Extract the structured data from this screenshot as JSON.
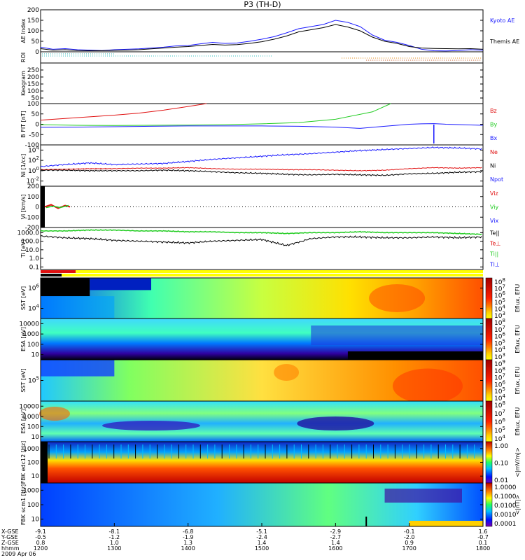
{
  "title": "P3 (TH-D)",
  "colors": {
    "blue": "#1a1aff",
    "red": "#e01010",
    "green": "#22cc22",
    "black": "#000000"
  },
  "chart_data": {
    "type": "line",
    "xlabels": {
      "row_labels": [
        "X-GSE",
        "Y-GSE",
        "Z-GSE",
        "hhmm",
        "2009 Apr 06"
      ],
      "ticks": [
        {
          "x": "1200",
          "xgse": "-9.1",
          "ygse": "-0.5",
          "zgse": "0.8"
        },
        {
          "x": "1300",
          "xgse": "-8.1",
          "ygse": "-1.2",
          "zgse": "1.0"
        },
        {
          "x": "1400",
          "xgse": "-6.8",
          "ygse": "-1.9",
          "zgse": "1.3"
        },
        {
          "x": "1500",
          "xgse": "-5.1",
          "ygse": "-2.4",
          "zgse": "1.4"
        },
        {
          "x": "1600",
          "xgse": "-2.9",
          "ygse": "-2.7",
          "zgse": "1.4"
        },
        {
          "x": "1700",
          "xgse": "-0.1",
          "ygse": "-2.0",
          "zgse": "0.9"
        },
        {
          "x": "1800",
          "xgse": "1.6",
          "ygse": "-0.7",
          "zgse": "0.1"
        }
      ]
    },
    "panels": [
      {
        "id": "ae",
        "ylabel": "AE Index",
        "yticks": [
          "0",
          "50",
          "100",
          "150",
          "200"
        ],
        "legend": [
          {
            "label": "Kyoto AE",
            "color": "#1a1aff"
          },
          {
            "label": "Themis AE",
            "color": "#000000"
          }
        ],
        "series": [
          {
            "name": "Kyoto AE",
            "x": [
              1200,
              1210,
              1220,
              1230,
              1240,
              1250,
              1300,
              1310,
              1320,
              1330,
              1340,
              1350,
              1400,
              1410,
              1420,
              1430,
              1440,
              1450,
              1500,
              1510,
              1520,
              1530,
              1540,
              1550,
              1600,
              1610,
              1620,
              1630,
              1640,
              1650,
              1700,
              1710,
              1720,
              1730,
              1740,
              1750,
              1800
            ],
            "y": [
              22,
              12,
              15,
              10,
              8,
              6,
              10,
              12,
              14,
              18,
              22,
              28,
              30,
              38,
              45,
              40,
              42,
              50,
              60,
              72,
              90,
              110,
              120,
              130,
              150,
              140,
              120,
              80,
              55,
              45,
              30,
              12,
              5,
              4,
              6,
              10,
              8
            ]
          },
          {
            "name": "Themis AE",
            "x": [
              1200,
              1210,
              1220,
              1230,
              1240,
              1250,
              1300,
              1310,
              1320,
              1330,
              1340,
              1350,
              1400,
              1410,
              1420,
              1430,
              1440,
              1450,
              1500,
              1510,
              1520,
              1530,
              1540,
              1550,
              1600,
              1610,
              1620,
              1630,
              1640,
              1650,
              1700,
              1710,
              1720,
              1730,
              1740,
              1750,
              1800
            ],
            "y": [
              15,
              8,
              10,
              6,
              5,
              5,
              7,
              8,
              10,
              14,
              18,
              22,
              25,
              30,
              35,
              32,
              34,
              40,
              48,
              60,
              75,
              95,
              105,
              115,
              130,
              118,
              100,
              70,
              50,
              40,
              25,
              18,
              16,
              15,
              14,
              15,
              12
            ]
          }
        ]
      },
      {
        "id": "roi",
        "ylabel": "ROI"
      },
      {
        "id": "keogram",
        "ylabel": "Keogram",
        "yticks": [
          "50",
          "100",
          "150",
          "200",
          "250"
        ]
      },
      {
        "id": "bfit",
        "ylabel": "B FIT [nT]",
        "yticks": [
          "-100",
          "-50",
          "0",
          "50",
          "100"
        ],
        "legend": [
          {
            "label": "Bz",
            "color": "#e01010"
          },
          {
            "label": "By",
            "color": "#22cc22"
          },
          {
            "label": "Bx",
            "color": "#1a1aff"
          }
        ],
        "series": [
          {
            "name": "Bz",
            "x": [
              1200,
              1220,
              1240,
              1300,
              1320,
              1340,
              1400,
              1415
            ],
            "y": [
              20,
              28,
              36,
              44,
              54,
              68,
              86,
              100
            ]
          },
          {
            "name": "By",
            "x": [
              1200,
              1230,
              1300,
              1330,
              1400,
              1430,
              1500,
              1530,
              1600,
              1630,
              1645
            ],
            "y": [
              -2,
              -5,
              -6,
              -5,
              -4,
              -2,
              2,
              8,
              24,
              60,
              100
            ]
          },
          {
            "name": "Bx",
            "x": [
              1200,
              1230,
              1300,
              1330,
              1400,
              1430,
              1500,
              1530,
              1600,
              1620,
              1640,
              1700,
              1710,
              1720,
              1730,
              1800
            ],
            "y": [
              -15,
              -14,
              -12,
              -10,
              -8,
              -8,
              -8,
              -10,
              -14,
              -20,
              -10,
              0,
              2,
              3,
              0,
              -5
            ]
          }
        ]
      },
      {
        "id": "ni",
        "ylabel": "Ni [1/cc]",
        "yticks": [
          "10^-2",
          "10^0",
          "10^2",
          "10^4"
        ],
        "legend": [
          {
            "label": "Ne",
            "color": "#e01010"
          },
          {
            "label": "Ni",
            "color": "#000000"
          },
          {
            "label": "Npot",
            "color": "#1a1aff"
          }
        ],
        "series": [
          {
            "name": "Npot",
            "x": [
              1200,
              1220,
              1240,
              1300,
              1320,
              1340,
              1400,
              1420,
              1440,
              1500,
              1520,
              1540,
              1600,
              1620,
              1640,
              1700,
              1720,
              1740,
              1800
            ],
            "y": [
              0.8,
              1.2,
              1.5,
              1.2,
              1.3,
              1.4,
              1.8,
              2.2,
              2.5,
              2.8,
              3.1,
              3.3,
              3.6,
              3.9,
              4.1,
              4.3,
              4.5,
              4.4,
              4.2
            ]
          },
          {
            "name": "Ne",
            "x": [
              1200,
              1220,
              1240,
              1300,
              1320,
              1340,
              1400,
              1420,
              1440,
              1500,
              1520,
              1540,
              1600,
              1620,
              1640,
              1700,
              1720,
              1740,
              1800
            ],
            "y": [
              0.2,
              0.3,
              0.4,
              0.4,
              0.5,
              0.5,
              0.6,
              0.4,
              0.3,
              0.3,
              0.2,
              0.2,
              0.1,
              0.0,
              0.1,
              0.4,
              0.6,
              0.5,
              0.6
            ]
          },
          {
            "name": "Ni",
            "x": [
              1200,
              1220,
              1240,
              1300,
              1320,
              1340,
              1400,
              1420,
              1440,
              1500,
              1520,
              1540,
              1600,
              1620,
              1640,
              1700,
              1720,
              1740,
              1800
            ],
            "y": [
              0.1,
              0.1,
              0.0,
              0.0,
              0.0,
              0.1,
              0.0,
              -0.2,
              -0.4,
              -0.5,
              -0.7,
              -0.8,
              -0.7,
              -0.8,
              -0.9,
              -0.6,
              -0.5,
              -0.3,
              -0.2
            ]
          }
        ]
      },
      {
        "id": "vi",
        "ylabel": "Vi [km/s]",
        "yticks": [
          "-200",
          "-100",
          "0",
          "100",
          "200"
        ],
        "legend": [
          {
            "label": "Viz",
            "color": "#e01010"
          },
          {
            "label": "Viy",
            "color": "#22cc22"
          },
          {
            "label": "Vix",
            "color": "#1a1aff"
          }
        ]
      },
      {
        "id": "ti",
        "ylabel": "Ti [eV]",
        "yticks": [
          "0.1",
          "1.0",
          "10.0",
          "100.0",
          "1000.0"
        ],
        "legend": [
          {
            "label": "Te||",
            "color": "#000000"
          },
          {
            "label": "Te⊥",
            "color": "#e01010"
          },
          {
            "label": "Ti||",
            "color": "#22cc22"
          },
          {
            "label": "Ti⊥",
            "color": "#1a1aff"
          }
        ],
        "series": [
          {
            "name": "Ti",
            "x": [
              1200,
              1220,
              1240,
              1300,
              1320,
              1340,
              1400,
              1420,
              1440,
              1500,
              1520,
              1540,
              1600,
              1620,
              1640,
              1700,
              1720,
              1740,
              1800
            ],
            "y": [
              3.2,
              3.2,
              3.3,
              3.3,
              3.2,
              3.2,
              3.1,
              3.1,
              3.0,
              3.0,
              2.9,
              3.0,
              3.0,
              3.1,
              3.0,
              3.0,
              3.0,
              2.9,
              2.8
            ]
          },
          {
            "name": "Te",
            "x": [
              1200,
              1220,
              1240,
              1300,
              1320,
              1340,
              1400,
              1420,
              1440,
              1500,
              1520,
              1540,
              1600,
              1620,
              1640,
              1700,
              1720,
              1740,
              1800
            ],
            "y": [
              2.6,
              2.4,
              2.3,
              2.1,
              2.0,
              1.9,
              1.8,
              2.0,
              2.1,
              2.2,
              1.5,
              2.3,
              2.5,
              2.5,
              2.4,
              2.4,
              2.5,
              2.4,
              2.5
            ]
          }
        ]
      },
      {
        "id": "sst1",
        "ylabel": "SST [eV]",
        "yticks": [
          "10^4",
          "10^6"
        ],
        "cbar_label": "Eflux, EFU",
        "cbar_ticks": [
          "10^8",
          "10^7",
          "10^6",
          "10^5",
          "10^4",
          "10^3"
        ]
      },
      {
        "id": "esa1",
        "ylabel": "ESA [eV]",
        "yticks": [
          "10",
          "100",
          "1000",
          "10000"
        ],
        "cbar_label": "Eflux, EFU",
        "cbar_ticks": [
          "10^8",
          "10^7",
          "10^6",
          "10^5",
          "10^4",
          "10^3"
        ]
      },
      {
        "id": "sst2",
        "ylabel": "SST [eV]",
        "yticks": [
          "10^5"
        ],
        "cbar_label": "Eflux, EFU",
        "cbar_ticks": [
          "10^9",
          "10^8",
          "10^7",
          "10^6",
          "10^5",
          "10^4"
        ]
      },
      {
        "id": "esa2",
        "ylabel": "ESA [eV]",
        "yticks": [
          "10",
          "100",
          "1000",
          "10000"
        ],
        "cbar_label": "Eflux, EFU",
        "cbar_ticks": [
          "10^8",
          "10^7",
          "10^6",
          "10^5",
          "10^4"
        ]
      },
      {
        "id": "fbk1",
        "ylabel": "FBK edc12 [Hz]",
        "yticks": [
          "10",
          "100",
          "1000"
        ],
        "cbar_label": "<|mV/m|>",
        "cbar_ticks": [
          "1.00",
          "0.10",
          "0.01"
        ]
      },
      {
        "id": "fbk2",
        "ylabel": "FBK scm1 [Hz]",
        "yticks": [
          "10",
          "100",
          "1000"
        ],
        "cbar_label": "<|nT|>",
        "cbar_ticks": [
          "1.0000",
          "0.1000",
          "0.0100",
          "0.0010",
          "0.0001"
        ]
      }
    ]
  }
}
